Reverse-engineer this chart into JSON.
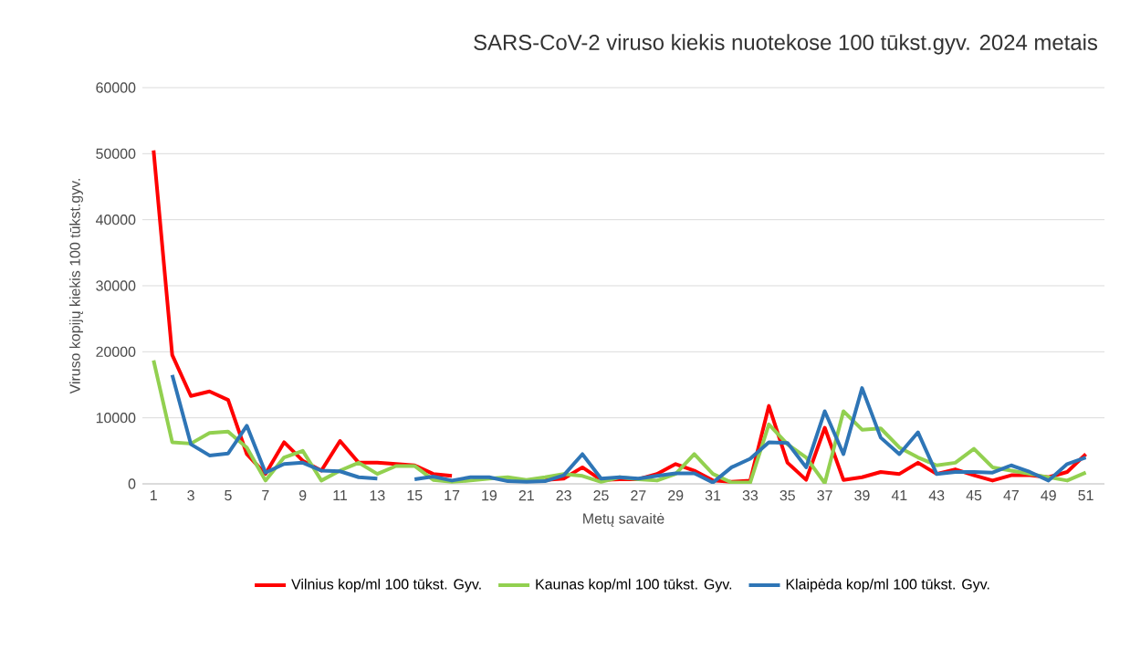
{
  "chart_data": {
    "type": "line",
    "title": "SARS-CoV-2 viruso kiekis nuotekose 100 tūkst.gyv. 2024 metais",
    "xlabel": "Metų savaitė",
    "ylabel": "Viruso kopijų kiekis 100 tūkst.gyv.",
    "categories": [
      "1",
      null,
      "3",
      null,
      "5",
      null,
      "7",
      null,
      "9",
      null,
      "11",
      null,
      "13",
      null,
      "15",
      null,
      "17",
      null,
      "19",
      null,
      "21",
      null,
      "23",
      null,
      "25",
      null,
      "27",
      null,
      "29",
      null,
      "31",
      null,
      "33",
      null,
      "35",
      null,
      "37",
      null,
      "39",
      null,
      "41",
      null,
      "43",
      null,
      "45",
      null,
      "47",
      null,
      "49",
      null,
      "51"
    ],
    "series": [
      {
        "name": "Vilnius kop/ml 100 tūkst. Gyv.",
        "color": "#ff0000",
        "values": [
          50500,
          19500,
          13300,
          14000,
          12700,
          4500,
          1500,
          6300,
          3500,
          2000,
          6500,
          3200,
          3200,
          3000,
          2800,
          1500,
          1200,
          null,
          null,
          null,
          null,
          600,
          800,
          2500,
          600,
          700,
          700,
          1500,
          3000,
          2000,
          500,
          300,
          500,
          11800,
          3200,
          600,
          8500,
          600,
          1000,
          1800,
          1500,
          3200,
          1500,
          2200,
          1300,
          500,
          1300,
          1300,
          1000,
          1800,
          4500
        ]
      },
      {
        "name": "Kaunas kop/ml 100 tūkst. Gyv.",
        "color": "#92d050",
        "values": [
          18700,
          6300,
          6100,
          7700,
          7900,
          5500,
          500,
          4000,
          5000,
          500,
          2000,
          3200,
          1500,
          2700,
          2700,
          600,
          300,
          500,
          800,
          1000,
          600,
          1000,
          1500,
          1200,
          300,
          1000,
          700,
          500,
          1500,
          4500,
          1500,
          200,
          200,
          9000,
          6000,
          4000,
          100,
          11000,
          8200,
          8400,
          5500,
          4000,
          2800,
          3200,
          5300,
          2500,
          2000,
          1500,
          1000,
          500,
          1700
        ]
      },
      {
        "name": "Klaipėda kop/ml 100 tūkst. Gyv.",
        "color": "#2e75b6",
        "values": [
          null,
          16500,
          6000,
          4300,
          4600,
          8800,
          1700,
          3000,
          3200,
          2000,
          1900,
          1000,
          800,
          null,
          700,
          1100,
          500,
          1000,
          1000,
          400,
          300,
          400,
          1300,
          4500,
          800,
          1000,
          800,
          1200,
          1600,
          1600,
          200,
          2500,
          3800,
          6300,
          6200,
          2500,
          11000,
          4500,
          14500,
          7000,
          4500,
          7800,
          1500,
          1800,
          1800,
          1700,
          2800,
          1800,
          500,
          3000,
          4000
        ]
      }
    ],
    "ylim": [
      0,
      60000
    ],
    "yticks": [
      0,
      10000,
      20000,
      30000,
      40000,
      50000,
      60000
    ],
    "grid": "y",
    "legend": "bottom",
    "marker": "none",
    "line_style": "solid"
  }
}
